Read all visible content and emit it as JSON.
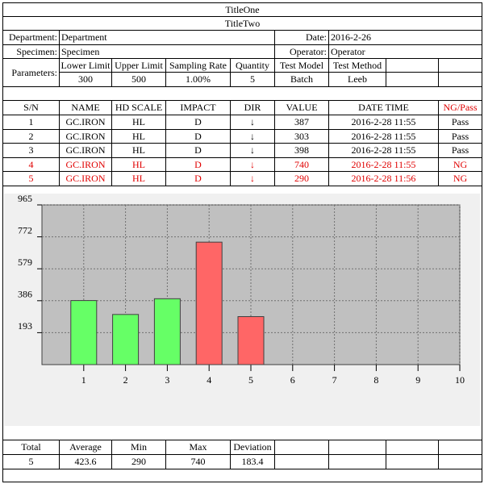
{
  "header": {
    "title": "TitleOne",
    "subtitle": "TitleTwo"
  },
  "info": {
    "department_label": "Department:",
    "department": "Department",
    "date_label": "Date:",
    "date": "2016-2-26",
    "specimen_label": "Specimen:",
    "specimen": "Specimen",
    "operator_label": "Operator:",
    "operator": "Operator"
  },
  "parameters": {
    "label": "Parameters:",
    "headers": [
      "Lower Limit",
      "Upper Limit",
      "Sampling Rate",
      "Quantity",
      "Test Model",
      "Test Method"
    ],
    "values": [
      300,
      500,
      "1.00%",
      5,
      "Batch",
      "Leeb"
    ]
  },
  "table": {
    "columns": [
      "S/N",
      "NAME",
      "HD SCALE",
      "IMPACT",
      "DIR",
      "VALUE",
      "DATE TIME",
      "NG/Pass"
    ],
    "rows": [
      [
        1,
        "GC.IRON",
        "HL",
        "D",
        "↓",
        387,
        "2016-2-28 11:55",
        "Pass"
      ],
      [
        2,
        "GC.IRON",
        "HL",
        "D",
        "↓",
        303,
        "2016-2-28 11:55",
        "Pass"
      ],
      [
        3,
        "GC.IRON",
        "HL",
        "D",
        "↓",
        398,
        "2016-2-28 11:55",
        "Pass"
      ],
      [
        4,
        "GC.IRON",
        "HL",
        "D",
        "↓",
        740,
        "2016-2-28 11:55",
        "NG"
      ],
      [
        5,
        "GC.IRON",
        "HL",
        "D",
        "↓",
        290,
        "2016-2-28 11:56",
        "NG"
      ]
    ],
    "row_colors": [
      "#000000",
      "#000000",
      "#000000",
      "#e00000",
      "#e00000"
    ]
  },
  "chart_data": {
    "type": "bar",
    "x": [
      1,
      2,
      3,
      4,
      5
    ],
    "values": [
      387,
      303,
      398,
      740,
      290
    ],
    "colors": [
      "#66ff66",
      "#66ff66",
      "#66ff66",
      "#ff6666",
      "#ff6666"
    ],
    "xlim": [
      0,
      10
    ],
    "xticks": [
      1,
      2,
      3,
      4,
      5,
      6,
      7,
      8,
      9,
      10
    ],
    "ylim": [
      0,
      965
    ],
    "yticks": [
      193,
      386,
      579,
      772,
      965
    ],
    "grid": true
  },
  "summary": {
    "headers": [
      "Total",
      "Average",
      "Min",
      "Max",
      "Deviation"
    ],
    "values": [
      5,
      423.6,
      290,
      740,
      183.4
    ]
  }
}
